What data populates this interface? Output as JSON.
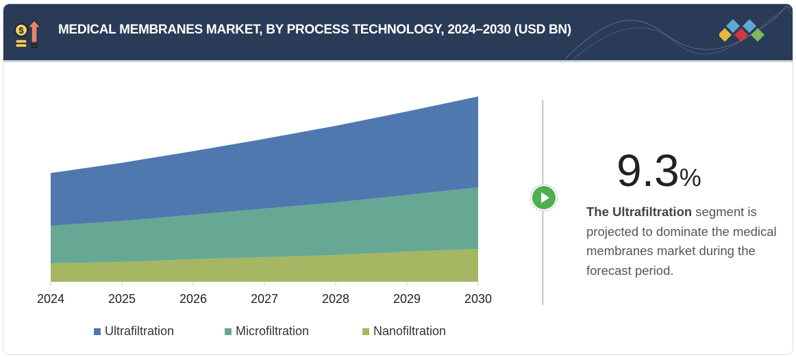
{
  "header": {
    "title": "MEDICAL MEMBRANES MARKET, BY PROCESS TECHNOLOGY, 2024–2030 (USD BN)",
    "icon": "coin-growth-icon",
    "logo": "diamond-logo"
  },
  "chart_data": {
    "type": "area",
    "stacked": true,
    "title": "",
    "xlabel": "",
    "ylabel": "",
    "categories": [
      "2024",
      "2025",
      "2026",
      "2027",
      "2028",
      "2029",
      "2030"
    ],
    "series": [
      {
        "name": "Nanofiltration",
        "color": "#a5b762",
        "values": [
          27,
          29,
          33,
          36,
          39,
          44,
          48
        ]
      },
      {
        "name": "Microfiltration",
        "color": "#67a895",
        "values": [
          55,
          60,
          65,
          71,
          77,
          83,
          90
        ]
      },
      {
        "name": "Ultrafiltration",
        "color": "#4f78ae",
        "values": [
          77,
          85,
          93,
          102,
          112,
          122,
          133
        ]
      }
    ],
    "note_values": "relative (no value axis shown)",
    "grid": false,
    "legend": "bottom"
  },
  "legend": [
    "Ultrafiltration",
    "Microfiltration",
    "Nanofiltration"
  ],
  "highlight": {
    "value": "9.3",
    "unit": "%",
    "desc_bold": "The Ultrafiltration",
    "desc_rest": " segment is projected  to dominate the medical membranes market during the forecast period."
  }
}
